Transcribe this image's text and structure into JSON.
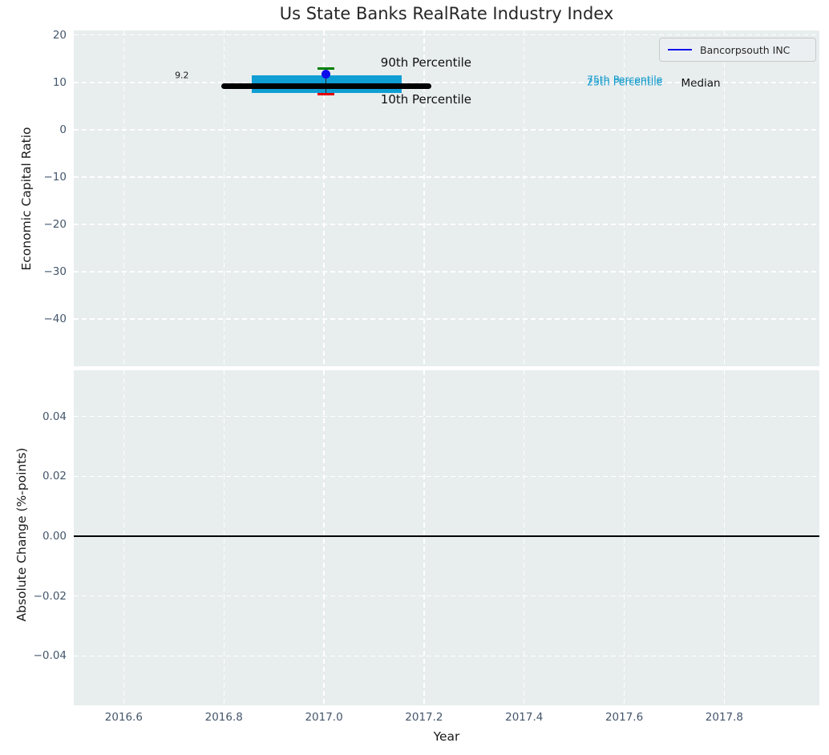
{
  "title": "Us State Banks RealRate Industry Index",
  "legend": {
    "label": "Bancorpsouth INC",
    "line_color": "#0d0deb"
  },
  "chart_data": {
    "type": "line",
    "title": "Us State Banks RealRate Industry Index",
    "xlabel": "Year",
    "xlim": [
      2016.5,
      2017.99
    ],
    "xticks": {
      "values": [
        2016.6,
        2016.8,
        2017.0,
        2017.2,
        2017.4,
        2017.6,
        2017.8
      ],
      "labels": [
        "2016.6",
        "2016.8",
        "2017.0",
        "2017.2",
        "2017.4",
        "2017.6",
        "2017.8"
      ]
    },
    "grid": "white dashed on light gray background",
    "legend_position": "upper right",
    "panels": [
      {
        "name": "economic-capital-ratio",
        "ylabel": "Economic Capital Ratio",
        "ylim": [
          -50,
          21
        ],
        "yticks": {
          "values": [
            20,
            10,
            0,
            -10,
            -20,
            -30,
            -40
          ],
          "labels": [
            "20",
            "10",
            "0",
            "−10",
            "−20",
            "−30",
            "−40"
          ]
        },
        "industry_index": {
          "median": {
            "value": 9.2,
            "x_start": 2016.8,
            "x_end": 2017.21,
            "label": "9.2",
            "color": "#000000"
          },
          "iqr_band": {
            "p25": 7.8,
            "p75": 11.5,
            "x_start": 2016.855,
            "x_end": 2017.155,
            "color": "#0f9ed3"
          },
          "p90": {
            "value": 12.9,
            "x": 2017.004,
            "color": "#007f00"
          },
          "p10": {
            "value": 7.5,
            "x": 2017.004,
            "color": "#e60000"
          },
          "whisker": {
            "x": 2017.004,
            "from": 7.5,
            "to": 12.9,
            "color": "#222222"
          },
          "company_point": {
            "name": "Bancorpsouth INC",
            "x": 2017.004,
            "value": 11.7,
            "color": "#0d0deb"
          }
        },
        "annotations": [
          {
            "text": "9.2",
            "x": 2016.716,
            "y": 11.5,
            "color": "#1a1a1a",
            "size": 11
          },
          {
            "text": "90th Percentile",
            "x": 2017.204,
            "y": 14.2,
            "color": "#111111",
            "size": 15
          },
          {
            "text": "10th Percentile",
            "x": 2017.204,
            "y": 6.4,
            "color": "#111111",
            "size": 15
          },
          {
            "text": "75th Percentile",
            "x": 2017.601,
            "y": 10.6,
            "color": "#149ccc",
            "size": 12.5
          },
          {
            "text": "25th Percentile",
            "x": 2017.601,
            "y": 10.2,
            "color": "#149ccc",
            "size": 12.5
          },
          {
            "text": "Median",
            "x": 2017.753,
            "y": 9.8,
            "color": "#111111",
            "size": 13.5
          }
        ]
      },
      {
        "name": "absolute-change",
        "ylabel": "Absolute Change (%-points)",
        "ylim": [
          -0.0565,
          0.0555
        ],
        "yticks": {
          "values": [
            0.04,
            0.02,
            0,
            -0.02,
            -0.04
          ],
          "labels": [
            "0.04",
            "0.02",
            "0.00",
            "−0.02",
            "−0.04"
          ]
        },
        "zero_line": {
          "value": 0.0,
          "color": "#000000"
        }
      }
    ],
    "colors": {
      "axes_background": "#e8edee",
      "grid": "#ffffff",
      "tick_labels": "#44566b",
      "iqr_band": "#0f9ed3",
      "p90_cap": "#007f00",
      "p10_cap": "#e60000",
      "company": "#0d0deb",
      "median_line": "#000000"
    }
  }
}
